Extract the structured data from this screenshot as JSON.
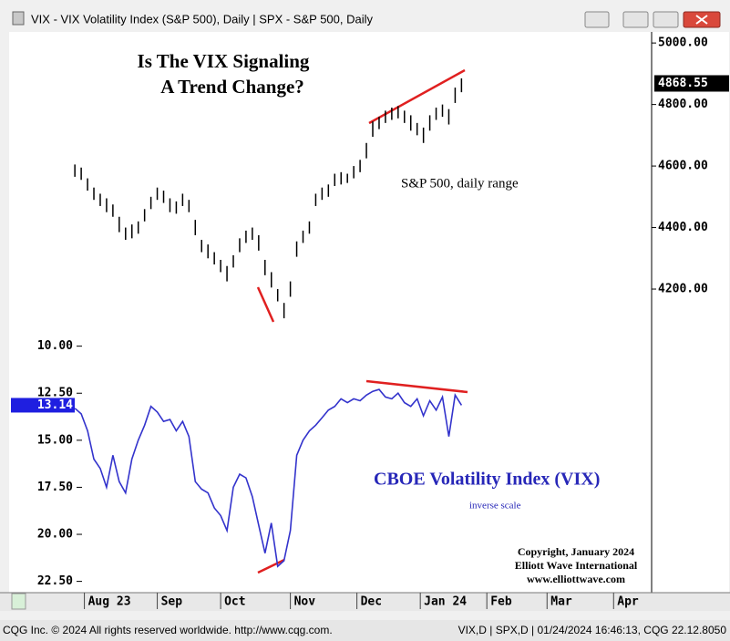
{
  "window_title": "VIX - VIX Volatility Index (S&P 500), Daily  |  SPX - S&P 500, Daily",
  "footer_left": "CQG Inc. © 2024 All rights reserved worldwide. http://www.cqg.com.",
  "footer_right": "VIX,D | SPX,D | 01/24/2024 16:46:13, CQG 22.12.8050",
  "copyright": [
    "Copyright, January 2024",
    "Elliott Wave International",
    "www.elliottwave.com"
  ],
  "chart_data": [
    {
      "type": "range",
      "title": [
        "Is The VIX Signaling",
        "A Trend Change?"
      ],
      "annotation": "S&P 500, daily range",
      "color": "#000000",
      "x": [
        15,
        17,
        19,
        21,
        23,
        25,
        27,
        29,
        31,
        33,
        35,
        37,
        39,
        41,
        43,
        45,
        47,
        49,
        51,
        53,
        55,
        57,
        59,
        61,
        63,
        65,
        67,
        69,
        71,
        73,
        75,
        77,
        79,
        81,
        83,
        85,
        87,
        89,
        91,
        93,
        95,
        97,
        99,
        101,
        103,
        105,
        107,
        109,
        111,
        113,
        115,
        117,
        119,
        121,
        123,
        125,
        127,
        129,
        131,
        133,
        135,
        137
      ],
      "high": [
        4605,
        4595,
        4560,
        4530,
        4510,
        4495,
        4475,
        4435,
        4400,
        4410,
        4420,
        4460,
        4500,
        4530,
        4520,
        4495,
        4485,
        4510,
        4490,
        4425,
        4360,
        4345,
        4320,
        4295,
        4275,
        4310,
        4365,
        4390,
        4400,
        4375,
        4295,
        4255,
        4200,
        4155,
        4225,
        4355,
        4390,
        4420,
        4510,
        4530,
        4540,
        4575,
        4580,
        4575,
        4600,
        4620,
        4675,
        4745,
        4760,
        4780,
        4790,
        4795,
        4780,
        4765,
        4740,
        4725,
        4765,
        4790,
        4800,
        4785,
        4855,
        4885
      ],
      "low": [
        4565,
        4555,
        4520,
        4490,
        4470,
        4450,
        4435,
        4385,
        4360,
        4365,
        4380,
        4420,
        4460,
        4490,
        4480,
        4450,
        4445,
        4470,
        4450,
        4375,
        4320,
        4300,
        4280,
        4255,
        4225,
        4270,
        4320,
        4350,
        4360,
        4325,
        4245,
        4205,
        4160,
        4105,
        4175,
        4305,
        4350,
        4380,
        4470,
        4490,
        4500,
        4535,
        4540,
        4545,
        4560,
        4580,
        4625,
        4695,
        4720,
        4740,
        4750,
        4755,
        4740,
        4715,
        4700,
        4675,
        4715,
        4750,
        4760,
        4735,
        4805,
        4840
      ],
      "last_value": 4868.55,
      "ylim": [
        3213,
        5036
      ],
      "yticks": [
        {
          "value": 4200,
          "label": "4200.00"
        },
        {
          "value": 4400,
          "label": "4400.00"
        },
        {
          "value": 4600,
          "label": "4600.00"
        },
        {
          "value": 4800,
          "label": "4800.00"
        },
        {
          "value": 5000,
          "label": "5000.00"
        }
      ]
    },
    {
      "type": "line",
      "title": "CBOE Volatility Index (VIX)",
      "subtitle": "inverse scale",
      "color": "#3333cc",
      "x": [
        15,
        17,
        19,
        21,
        23,
        25,
        27,
        29,
        31,
        33,
        35,
        37,
        39,
        41,
        43,
        45,
        47,
        49,
        51,
        53,
        55,
        57,
        59,
        61,
        63,
        65,
        67,
        69,
        71,
        73,
        75,
        77,
        79,
        81,
        83,
        85,
        87,
        89,
        91,
        93,
        95,
        97,
        99,
        101,
        103,
        105,
        107,
        109,
        111,
        113,
        115,
        117,
        119,
        121,
        123,
        125,
        127,
        129,
        131,
        133,
        135,
        137
      ],
      "values": [
        13.3,
        13.6,
        14.5,
        16.0,
        16.5,
        17.5,
        15.8,
        17.2,
        17.8,
        16.0,
        15.0,
        14.2,
        13.2,
        13.5,
        14.0,
        13.9,
        14.5,
        14.0,
        14.8,
        17.2,
        17.6,
        17.8,
        18.6,
        19.0,
        19.8,
        17.5,
        16.8,
        17.0,
        18.0,
        19.5,
        21.0,
        19.4,
        21.7,
        21.4,
        19.8,
        15.8,
        15.0,
        14.5,
        14.2,
        13.8,
        13.4,
        13.2,
        12.8,
        13.0,
        12.8,
        12.9,
        12.6,
        12.4,
        12.3,
        12.7,
        12.8,
        12.5,
        13.0,
        13.2,
        12.8,
        13.7,
        12.9,
        13.4,
        12.7,
        14.8,
        12.6,
        13.14
      ],
      "last_value": 13.14,
      "ylim": [
        23.1,
        -6.7
      ],
      "yticks": [
        {
          "value": 10,
          "label": "10.00"
        },
        {
          "value": 12.5,
          "label": "12.50"
        },
        {
          "value": 15,
          "label": "15.00"
        },
        {
          "value": 17.5,
          "label": "17.50"
        },
        {
          "value": 20,
          "label": "20.00"
        },
        {
          "value": 22.5,
          "label": "22.50"
        }
      ],
      "xlim": [
        0,
        197
      ],
      "xticks": [
        {
          "value": 18,
          "label": "Aug 23"
        },
        {
          "value": 41,
          "label": "Sep"
        },
        {
          "value": 61,
          "label": "Oct"
        },
        {
          "value": 83,
          "label": "Nov"
        },
        {
          "value": 104,
          "label": "Dec"
        },
        {
          "value": 124,
          "label": "Jan 24"
        },
        {
          "value": 145,
          "label": "Feb"
        },
        {
          "value": 164,
          "label": "Mar"
        },
        {
          "value": 185,
          "label": "Apr"
        }
      ]
    }
  ]
}
